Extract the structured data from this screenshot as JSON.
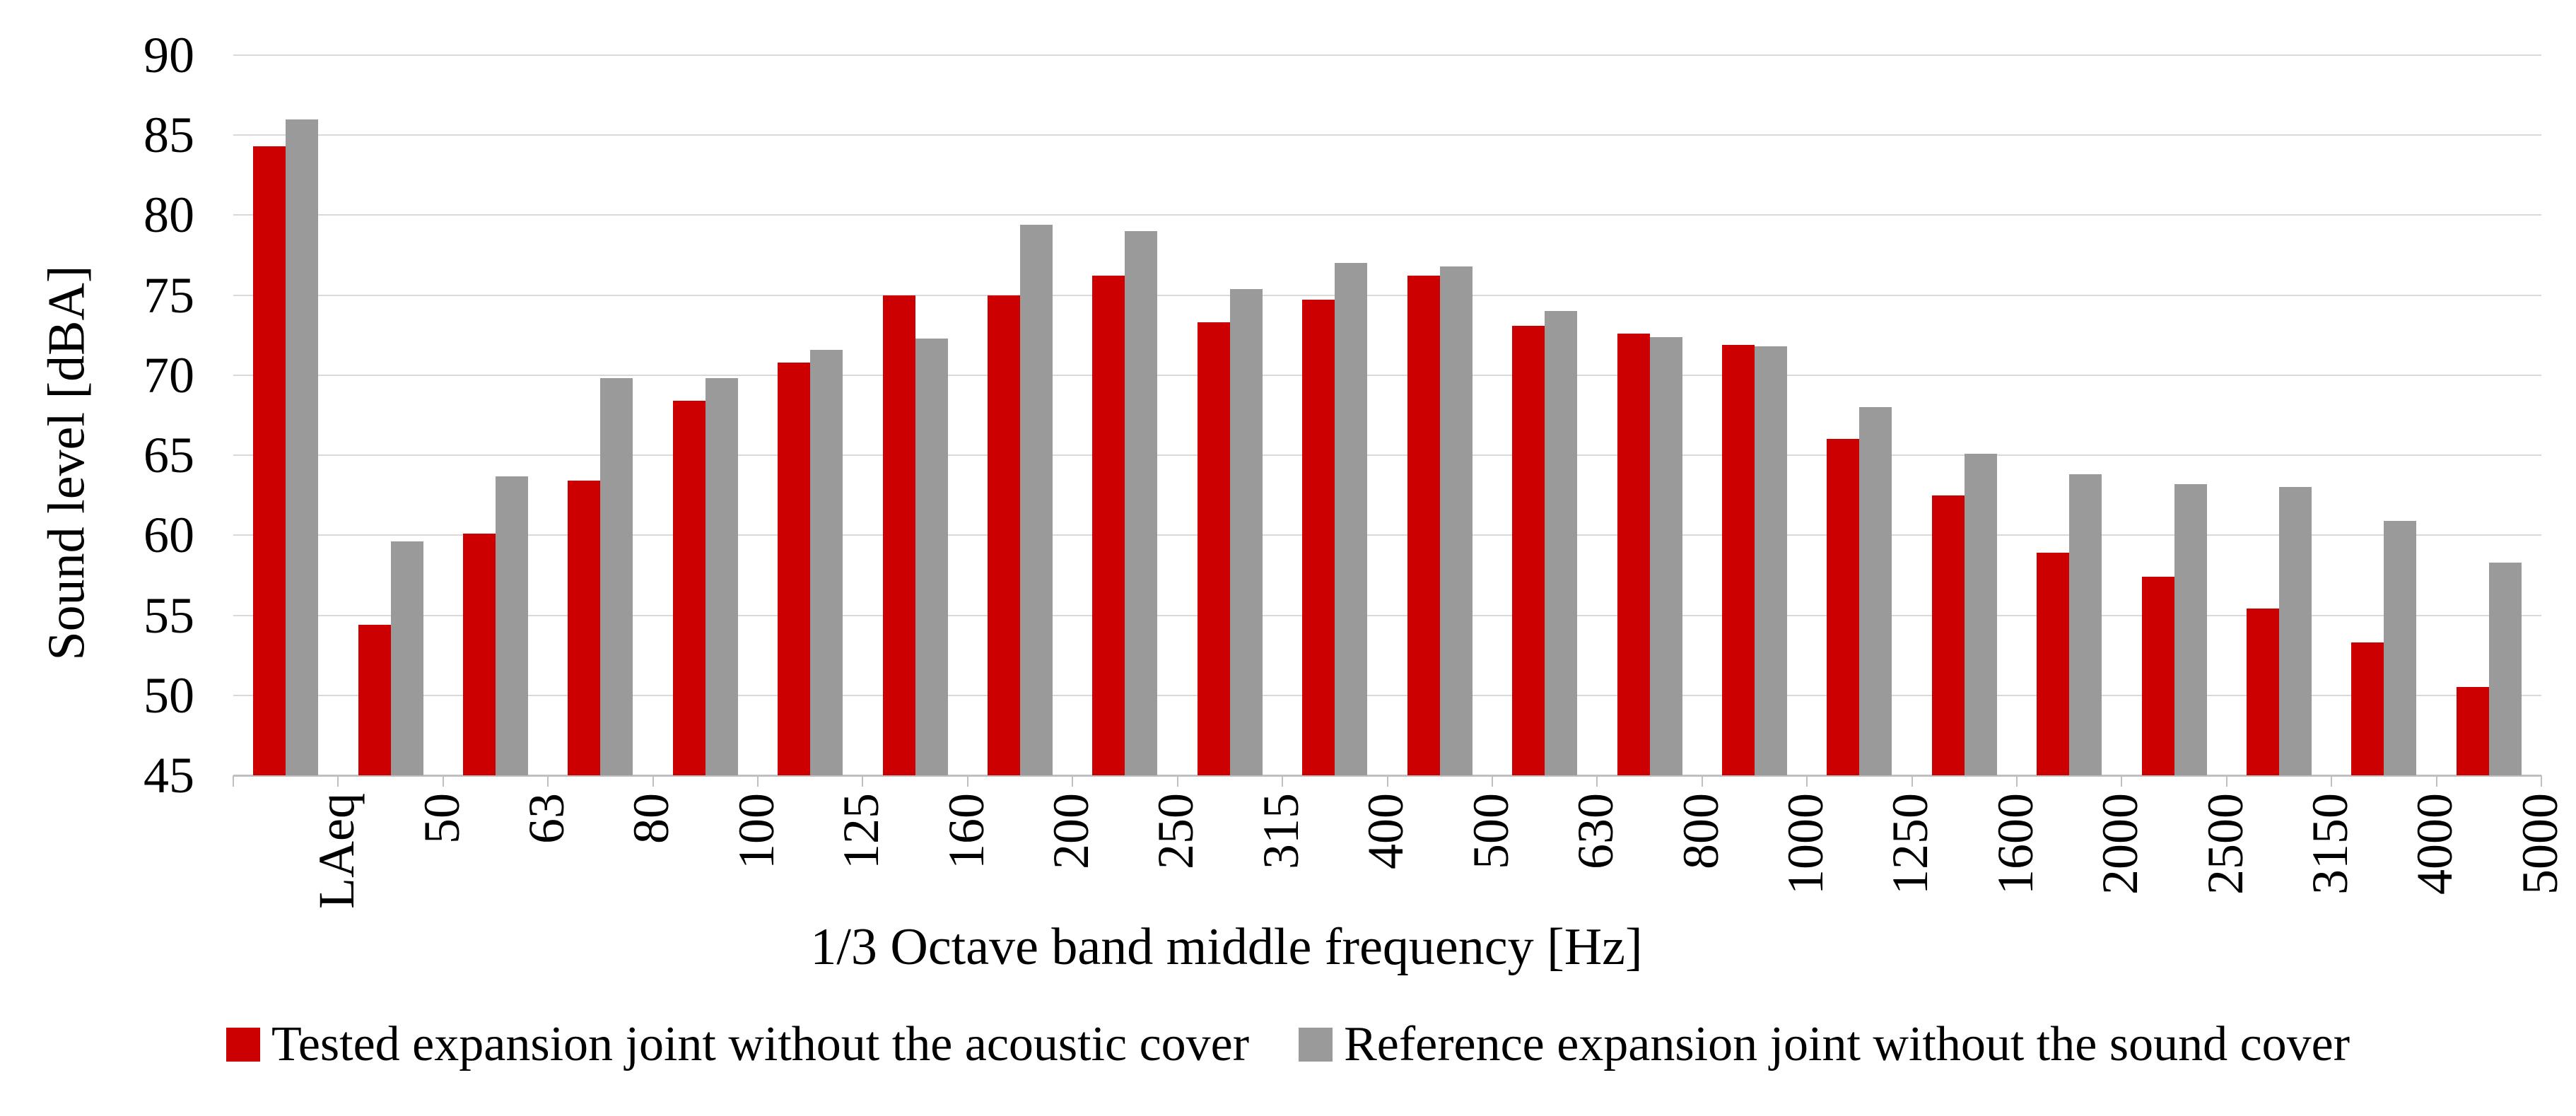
{
  "chart_data": {
    "type": "bar",
    "title": "",
    "xlabel": "1/3 Octave band middle frequency [Hz]",
    "ylabel": "Sound level [dBA]",
    "ylim": [
      45,
      90
    ],
    "ytick_step": 5,
    "ytick_labels": [
      "45",
      "50",
      "55",
      "60",
      "65",
      "70",
      "75",
      "80",
      "85",
      "90"
    ],
    "grid": true,
    "legend_position": "bottom",
    "categories": [
      "LAeq",
      "50",
      "63",
      "80",
      "100",
      "125",
      "160",
      "200",
      "250",
      "315",
      "400",
      "500",
      "630",
      "800",
      "1000",
      "1250",
      "1600",
      "2000",
      "2500",
      "3150",
      "4000",
      "5000"
    ],
    "series": [
      {
        "name": "Tested expansion joint without the acoustic cover",
        "color": "#CC0000",
        "values": [
          84.3,
          54.4,
          60.1,
          63.4,
          68.4,
          70.8,
          75.0,
          75.0,
          76.2,
          73.3,
          74.7,
          76.2,
          73.1,
          72.6,
          71.9,
          66.0,
          62.5,
          58.9,
          57.4,
          55.4,
          53.3,
          50.5
        ]
      },
      {
        "name": "Reference expansion joint without the sound cover",
        "color": "#9A9A9A",
        "values": [
          86.0,
          59.6,
          63.7,
          69.8,
          69.8,
          71.6,
          72.3,
          79.4,
          79.0,
          75.4,
          77.0,
          76.8,
          74.0,
          72.4,
          71.8,
          68.0,
          65.1,
          63.8,
          63.2,
          63.0,
          60.9,
          58.3
        ]
      }
    ]
  },
  "colors": {
    "background": "#FFFFFF",
    "gridline": "#D9D9D9",
    "axis": "#BFBFBF",
    "text": "#000000",
    "bar_tested": "#CC0000",
    "bar_reference": "#9A9A9A"
  }
}
